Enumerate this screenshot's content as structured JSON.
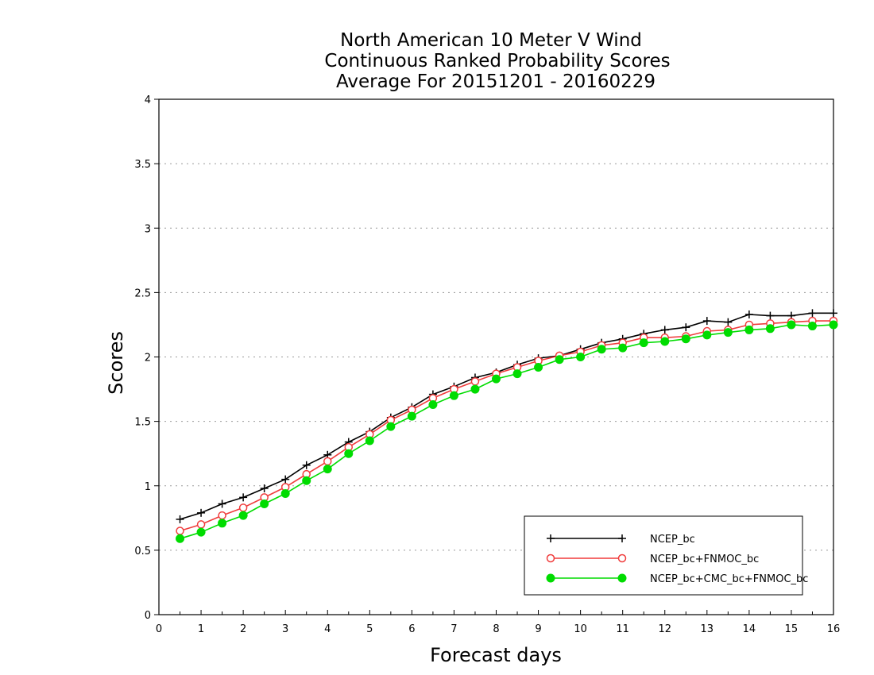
{
  "chart_data": {
    "type": "line",
    "title_lines": [
      "North American 10 Meter V Wind",
      "Continuous Ranked Probability Scores",
      "Average For 20151201 - 20160229"
    ],
    "xlabel": "Forecast days",
    "ylabel": "Scores",
    "xlim": [
      0,
      16
    ],
    "ylim": [
      0,
      4
    ],
    "xticks": [
      0,
      1,
      2,
      3,
      4,
      5,
      6,
      7,
      8,
      9,
      10,
      11,
      12,
      13,
      14,
      15,
      16
    ],
    "yticks": [
      0,
      0.5,
      1,
      1.5,
      2,
      2.5,
      3,
      3.5,
      4
    ],
    "ytick_labels": [
      "0",
      "0.5",
      "1",
      "1.5",
      "2",
      "2.5",
      "3",
      "3.5",
      "4"
    ],
    "grid": "horizontal dotted",
    "legend_position": "bottom-right",
    "x": [
      0.5,
      1,
      1.5,
      2,
      2.5,
      3,
      3.5,
      4,
      4.5,
      5,
      5.5,
      6,
      6.5,
      7,
      7.5,
      8,
      8.5,
      9,
      9.5,
      10,
      10.5,
      11,
      11.5,
      12,
      12.5,
      13,
      13.5,
      14,
      14.5,
      15,
      15.5,
      16
    ],
    "series": [
      {
        "name": "NCEP_bc",
        "color": "#000000",
        "marker": "plus",
        "values": [
          0.74,
          0.79,
          0.86,
          0.91,
          0.98,
          1.05,
          1.16,
          1.24,
          1.34,
          1.42,
          1.53,
          1.61,
          1.71,
          1.77,
          1.84,
          1.88,
          1.94,
          1.99,
          2.01,
          2.06,
          2.11,
          2.14,
          2.18,
          2.21,
          2.23,
          2.28,
          2.27,
          2.33,
          2.32,
          2.32,
          2.34,
          2.34
        ]
      },
      {
        "name": "NCEP_bc+FNMOC_bc",
        "color": "#f03c3c",
        "marker": "open-circle",
        "values": [
          0.65,
          0.7,
          0.77,
          0.83,
          0.91,
          0.99,
          1.09,
          1.19,
          1.3,
          1.4,
          1.51,
          1.59,
          1.68,
          1.75,
          1.81,
          1.87,
          1.92,
          1.97,
          2.01,
          2.04,
          2.09,
          2.11,
          2.15,
          2.15,
          2.16,
          2.2,
          2.21,
          2.25,
          2.26,
          2.27,
          2.28,
          2.28
        ]
      },
      {
        "name": "NCEP_bc+CMC_bc+FNMOC_bc",
        "color": "#00dc00",
        "marker": "filled-circle",
        "values": [
          0.59,
          0.64,
          0.71,
          0.77,
          0.86,
          0.94,
          1.04,
          1.13,
          1.25,
          1.35,
          1.46,
          1.54,
          1.63,
          1.7,
          1.75,
          1.83,
          1.87,
          1.92,
          1.98,
          2.0,
          2.06,
          2.07,
          2.11,
          2.12,
          2.14,
          2.17,
          2.19,
          2.21,
          2.22,
          2.25,
          2.24,
          2.25
        ]
      }
    ]
  }
}
